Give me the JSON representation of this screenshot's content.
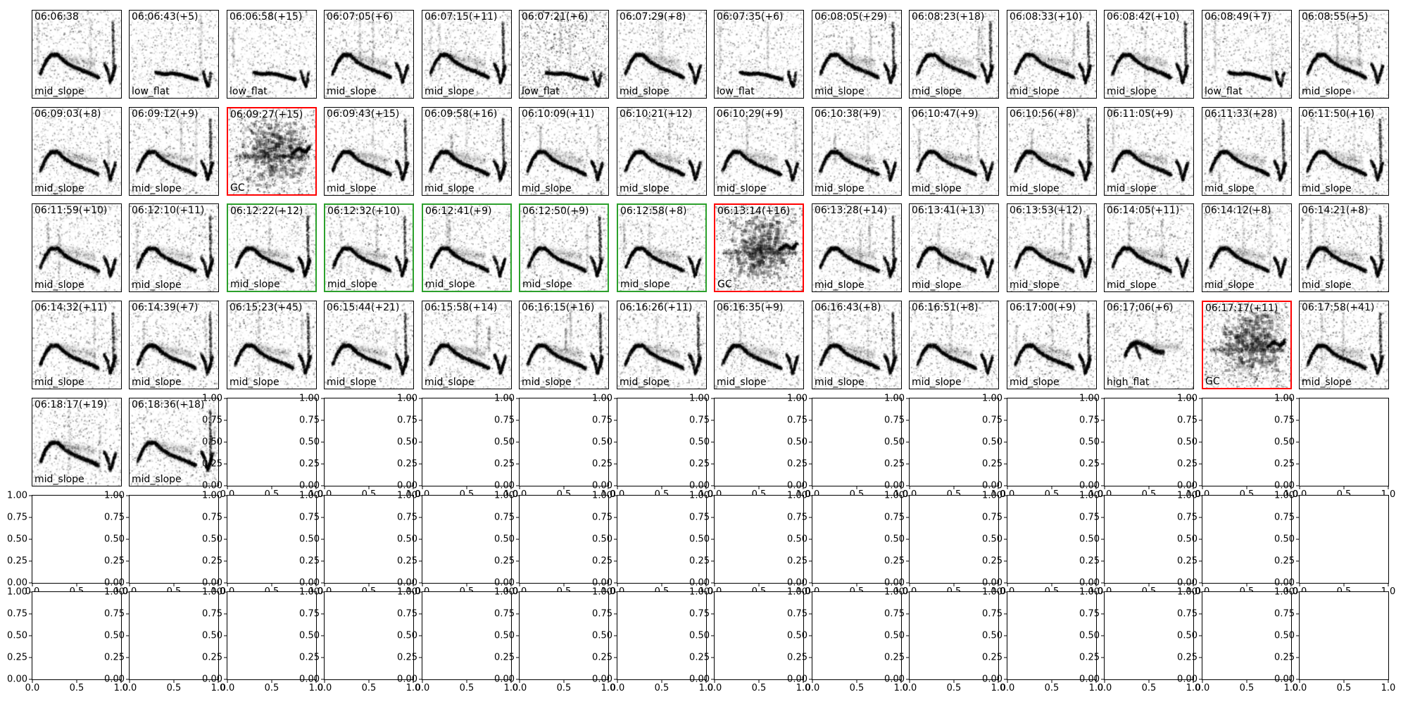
{
  "colors": {
    "black": "#000000",
    "red": "#ff0000",
    "green": "#2ca02c"
  },
  "chart_data": {
    "type": "heatmap",
    "title": "",
    "xlabel": "",
    "ylabel": "",
    "grid": {
      "rows": 7,
      "cols": 14
    },
    "axis_range": [
      0,
      1
    ],
    "x_tick_labels": [
      "0.0",
      "0.5",
      "1.0"
    ],
    "y_tick_labels": [
      "1.00",
      "0.75",
      "0.50",
      "0.25",
      "0.00"
    ],
    "legend": "none",
    "subplots": [
      {
        "row": 0,
        "col": 0,
        "title": "06:06:38",
        "label": "mid_slope",
        "border": "black",
        "pattern": "mid_slope"
      },
      {
        "row": 0,
        "col": 1,
        "title": "06:06:43(+5)",
        "label": "low_flat",
        "border": "black",
        "pattern": "low_flat"
      },
      {
        "row": 0,
        "col": 2,
        "title": "06:06:58(+15)",
        "label": "low_flat",
        "border": "black",
        "pattern": "low_flat"
      },
      {
        "row": 0,
        "col": 3,
        "title": "06:07:05(+6)",
        "label": "mid_slope",
        "border": "black",
        "pattern": "mid_slope"
      },
      {
        "row": 0,
        "col": 4,
        "title": "06:07:15(+11)",
        "label": "mid_slope",
        "border": "black",
        "pattern": "mid_slope"
      },
      {
        "row": 0,
        "col": 5,
        "title": "06:07:21(+6)",
        "label": "low_flat",
        "border": "black",
        "pattern": "low_flat_noisy"
      },
      {
        "row": 0,
        "col": 6,
        "title": "06:07:29(+8)",
        "label": "mid_slope",
        "border": "black",
        "pattern": "mid_slope"
      },
      {
        "row": 0,
        "col": 7,
        "title": "06:07:35(+6)",
        "label": "low_flat",
        "border": "black",
        "pattern": "low_flat"
      },
      {
        "row": 0,
        "col": 8,
        "title": "06:08:05(+29)",
        "label": "mid_slope",
        "border": "black",
        "pattern": "mid_slope"
      },
      {
        "row": 0,
        "col": 9,
        "title": "06:08:23(+18)",
        "label": "mid_slope",
        "border": "black",
        "pattern": "mid_slope"
      },
      {
        "row": 0,
        "col": 10,
        "title": "06:08:33(+10)",
        "label": "mid_slope",
        "border": "black",
        "pattern": "mid_slope"
      },
      {
        "row": 0,
        "col": 11,
        "title": "06:08:42(+10)",
        "label": "mid_slope",
        "border": "black",
        "pattern": "mid_slope"
      },
      {
        "row": 0,
        "col": 12,
        "title": "06:08:49(+7)",
        "label": "low_flat",
        "border": "black",
        "pattern": "low_flat"
      },
      {
        "row": 0,
        "col": 13,
        "title": "06:08:55(+5)",
        "label": "mid_slope",
        "border": "black",
        "pattern": "mid_slope"
      },
      {
        "row": 1,
        "col": 0,
        "title": "06:09:03(+8)",
        "label": "mid_slope",
        "border": "black",
        "pattern": "mid_slope"
      },
      {
        "row": 1,
        "col": 1,
        "title": "06:09:12(+9)",
        "label": "mid_slope",
        "border": "black",
        "pattern": "mid_slope"
      },
      {
        "row": 1,
        "col": 2,
        "title": "06:09:27(+15)",
        "label": "GC",
        "border": "red",
        "pattern": "gc"
      },
      {
        "row": 1,
        "col": 3,
        "title": "06:09:43(+15)",
        "label": "mid_slope",
        "border": "black",
        "pattern": "mid_slope"
      },
      {
        "row": 1,
        "col": 4,
        "title": "06:09:58(+16)",
        "label": "mid_slope",
        "border": "black",
        "pattern": "mid_slope"
      },
      {
        "row": 1,
        "col": 5,
        "title": "06:10:09(+11)",
        "label": "mid_slope",
        "border": "black",
        "pattern": "mid_slope"
      },
      {
        "row": 1,
        "col": 6,
        "title": "06:10:21(+12)",
        "label": "mid_slope",
        "border": "black",
        "pattern": "mid_slope"
      },
      {
        "row": 1,
        "col": 7,
        "title": "06:10:29(+9)",
        "label": "mid_slope",
        "border": "black",
        "pattern": "mid_slope"
      },
      {
        "row": 1,
        "col": 8,
        "title": "06:10:38(+9)",
        "label": "mid_slope",
        "border": "black",
        "pattern": "mid_slope"
      },
      {
        "row": 1,
        "col": 9,
        "title": "06:10:47(+9)",
        "label": "mid_slope",
        "border": "black",
        "pattern": "mid_slope"
      },
      {
        "row": 1,
        "col": 10,
        "title": "06:10:56(+8)",
        "label": "mid_slope",
        "border": "black",
        "pattern": "mid_slope"
      },
      {
        "row": 1,
        "col": 11,
        "title": "06:11:05(+9)",
        "label": "mid_slope",
        "border": "black",
        "pattern": "mid_slope"
      },
      {
        "row": 1,
        "col": 12,
        "title": "06:11:33(+28)",
        "label": "mid_slope",
        "border": "black",
        "pattern": "mid_slope"
      },
      {
        "row": 1,
        "col": 13,
        "title": "06:11:50(+16)",
        "label": "mid_slope",
        "border": "black",
        "pattern": "mid_slope"
      },
      {
        "row": 2,
        "col": 0,
        "title": "06:11:59(+10)",
        "label": "mid_slope",
        "border": "black",
        "pattern": "mid_slope"
      },
      {
        "row": 2,
        "col": 1,
        "title": "06:12:10(+11)",
        "label": "mid_slope",
        "border": "black",
        "pattern": "mid_slope"
      },
      {
        "row": 2,
        "col": 2,
        "title": "06:12:22(+12)",
        "label": "mid_slope",
        "border": "green",
        "pattern": "mid_slope"
      },
      {
        "row": 2,
        "col": 3,
        "title": "06:12:32(+10)",
        "label": "mid_slope",
        "border": "green",
        "pattern": "mid_slope"
      },
      {
        "row": 2,
        "col": 4,
        "title": "06:12:41(+9)",
        "label": "mid_slope",
        "border": "green",
        "pattern": "mid_slope"
      },
      {
        "row": 2,
        "col": 5,
        "title": "06:12:50(+9)",
        "label": "mid_slope",
        "border": "green",
        "pattern": "mid_slope"
      },
      {
        "row": 2,
        "col": 6,
        "title": "06:12:58(+8)",
        "label": "mid_slope",
        "border": "green",
        "pattern": "mid_slope"
      },
      {
        "row": 2,
        "col": 7,
        "title": "06:13:14(+16)",
        "label": "GC",
        "border": "red",
        "pattern": "gc"
      },
      {
        "row": 2,
        "col": 8,
        "title": "06:13:28(+14)",
        "label": "mid_slope",
        "border": "black",
        "pattern": "mid_slope"
      },
      {
        "row": 2,
        "col": 9,
        "title": "06:13:41(+13)",
        "label": "mid_slope",
        "border": "black",
        "pattern": "mid_slope"
      },
      {
        "row": 2,
        "col": 10,
        "title": "06:13:53(+12)",
        "label": "mid_slope",
        "border": "black",
        "pattern": "mid_slope"
      },
      {
        "row": 2,
        "col": 11,
        "title": "06:14:05(+11)",
        "label": "mid_slope",
        "border": "black",
        "pattern": "mid_slope"
      },
      {
        "row": 2,
        "col": 12,
        "title": "06:14:12(+8)",
        "label": "mid_slope",
        "border": "black",
        "pattern": "mid_slope"
      },
      {
        "row": 2,
        "col": 13,
        "title": "06:14:21(+8)",
        "label": "mid_slope",
        "border": "black",
        "pattern": "mid_slope"
      },
      {
        "row": 3,
        "col": 0,
        "title": "06:14:32(+11)",
        "label": "mid_slope",
        "border": "black",
        "pattern": "mid_slope"
      },
      {
        "row": 3,
        "col": 1,
        "title": "06:14:39(+7)",
        "label": "mid_slope",
        "border": "black",
        "pattern": "mid_slope"
      },
      {
        "row": 3,
        "col": 2,
        "title": "06:15:23(+45)",
        "label": "mid_slope",
        "border": "black",
        "pattern": "mid_slope"
      },
      {
        "row": 3,
        "col": 3,
        "title": "06:15:44(+21)",
        "label": "mid_slope",
        "border": "black",
        "pattern": "mid_slope"
      },
      {
        "row": 3,
        "col": 4,
        "title": "06:15:58(+14)",
        "label": "mid_slope",
        "border": "black",
        "pattern": "mid_slope"
      },
      {
        "row": 3,
        "col": 5,
        "title": "06:16:15(+16)",
        "label": "mid_slope",
        "border": "black",
        "pattern": "mid_slope"
      },
      {
        "row": 3,
        "col": 6,
        "title": "06:16:26(+11)",
        "label": "mid_slope",
        "border": "black",
        "pattern": "mid_slope"
      },
      {
        "row": 3,
        "col": 7,
        "title": "06:16:35(+9)",
        "label": "mid_slope",
        "border": "black",
        "pattern": "mid_slope"
      },
      {
        "row": 3,
        "col": 8,
        "title": "06:16:43(+8)",
        "label": "mid_slope",
        "border": "black",
        "pattern": "mid_slope"
      },
      {
        "row": 3,
        "col": 9,
        "title": "06:16:51(+8)",
        "label": "mid_slope",
        "border": "black",
        "pattern": "mid_slope"
      },
      {
        "row": 3,
        "col": 10,
        "title": "06:17:00(+9)",
        "label": "mid_slope",
        "border": "black",
        "pattern": "mid_slope"
      },
      {
        "row": 3,
        "col": 11,
        "title": "06:17:06(+6)",
        "label": "high_flat",
        "border": "black",
        "pattern": "high_flat"
      },
      {
        "row": 3,
        "col": 12,
        "title": "06:17:17(+11)",
        "label": "GC",
        "border": "red",
        "pattern": "gc"
      },
      {
        "row": 3,
        "col": 13,
        "title": "06:17:58(+41)",
        "label": "mid_slope",
        "border": "black",
        "pattern": "mid_slope"
      },
      {
        "row": 4,
        "col": 0,
        "title": "06:18:17(+19)",
        "label": "mid_slope",
        "border": "black",
        "pattern": "mid_slope"
      },
      {
        "row": 4,
        "col": 1,
        "title": "06:18:36(+18)",
        "label": "mid_slope",
        "border": "black",
        "pattern": "mid_slope"
      }
    ]
  }
}
